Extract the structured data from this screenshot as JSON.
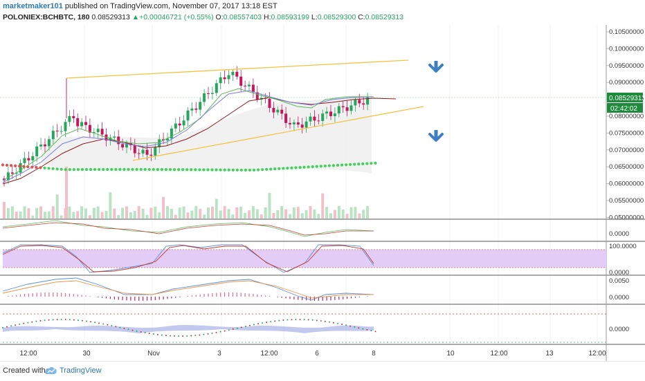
{
  "header": {
    "author": "marketmaker101",
    "published_text": "published on TradingView.com, November 07, 2017 13:18 EST",
    "symbol": "POLONIEX:BCHBTC, 180",
    "last_price": "0.08529313",
    "change_icon": "triangle-up-icon",
    "change_arrow": "▲",
    "change": "+0.00046721 (+0.55%)",
    "o_label": "O:",
    "o_value": "0.08557403",
    "h_label": "H:",
    "h_value": "0.08593199",
    "l_label": "L:",
    "l_value": "0.08529300",
    "c_label": "C:",
    "c_value": "0.08529313"
  },
  "colors": {
    "up": "#26a65b",
    "down": "#c2185b",
    "trendline": "#f5c242",
    "arrow": "#3d7fc1",
    "rsi_band": "#e3ccf5",
    "price_tag": "#1e8a3b"
  },
  "price_axis": {
    "labels": [
      "0.10500000",
      "0.10000000",
      "0.09500000",
      "0.09000000",
      "0.08500000",
      "0.08000000",
      "0.07500000",
      "0.07000000",
      "0.06500000",
      "0.06000000",
      "0.05500000",
      "0.05000000"
    ],
    "current_price": "0.08529313",
    "countdown": "02:42:02"
  },
  "panes": {
    "oscillator_labels": [
      "0.0000"
    ],
    "stoch_labels": [
      "100.0000",
      "0.0000"
    ],
    "macd_labels": [
      "0.0050",
      "0.0000"
    ],
    "last_labels": [
      "0.0000"
    ]
  },
  "time_axis": {
    "labels": [
      "12:00",
      "30",
      "Nov",
      "3",
      "12:00",
      "6",
      "8",
      "10",
      "12:00",
      "13",
      "12:00"
    ]
  },
  "annotations": {
    "arrow_icons": [
      "arrow-down-icon",
      "arrow-down-icon"
    ]
  },
  "footer": {
    "created_with": "Created with",
    "logo_icon": "tradingview-cloud-icon",
    "brand": "TradingView"
  }
}
